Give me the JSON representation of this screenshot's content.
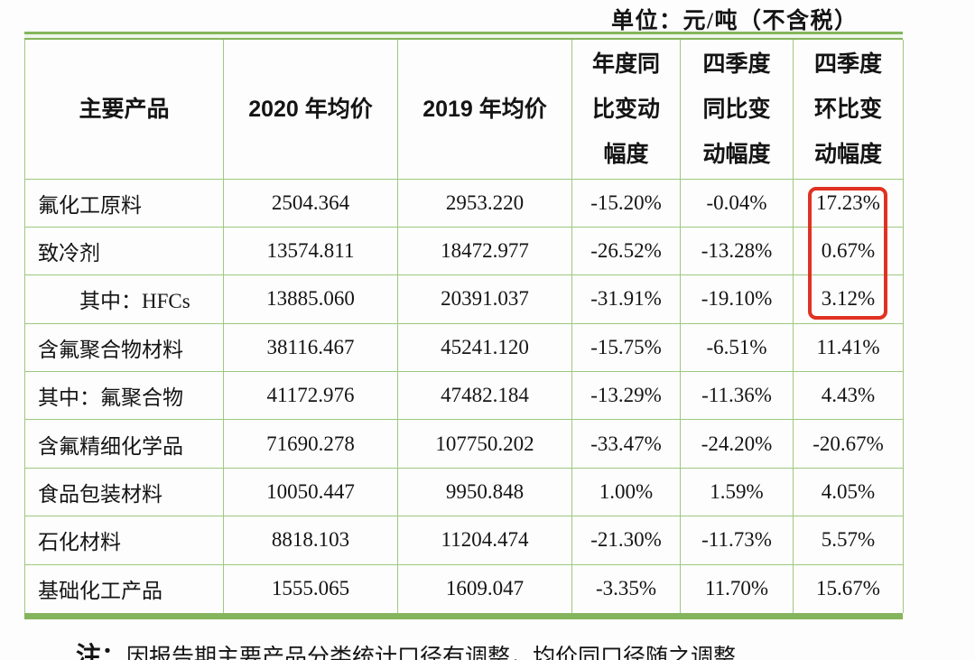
{
  "unit_label": "单位：元/吨（不含税）",
  "colors": {
    "border_green_dark": "#84b55c",
    "border_green_light": "#9dc87f",
    "highlight_red": "#e03222"
  },
  "table": {
    "col_headers": [
      {
        "lines": [
          "主要产品"
        ]
      },
      {
        "lines": [
          "2020 年均价"
        ]
      },
      {
        "lines": [
          "2019 年均价"
        ]
      },
      {
        "lines": [
          "年度同",
          "比变动",
          "幅度"
        ]
      },
      {
        "lines": [
          "四季度",
          "同比变",
          "动幅度"
        ]
      },
      {
        "lines": [
          "四季度",
          "环比变",
          "动幅度"
        ]
      }
    ],
    "rows": [
      {
        "product": "氟化工原料",
        "indent": false,
        "price_2020": "2504.364",
        "price_2019": "2953.220",
        "annual_yoy": "-15.20%",
        "q4_yoy": "-0.04%",
        "q4_qoq": "17.23%"
      },
      {
        "product": "致冷剂",
        "indent": false,
        "price_2020": "13574.811",
        "price_2019": "18472.977",
        "annual_yoy": "-26.52%",
        "q4_yoy": "-13.28%",
        "q4_qoq": "0.67%"
      },
      {
        "product": "其中：HFCs",
        "indent": true,
        "price_2020": "13885.060",
        "price_2019": "20391.037",
        "annual_yoy": "-31.91%",
        "q4_yoy": "-19.10%",
        "q4_qoq": "3.12%"
      },
      {
        "product": "含氟聚合物材料",
        "indent": false,
        "price_2020": "38116.467",
        "price_2019": "45241.120",
        "annual_yoy": "-15.75%",
        "q4_yoy": "-6.51%",
        "q4_qoq": "11.41%"
      },
      {
        "product": "其中：氟聚合物",
        "indent": false,
        "price_2020": "41172.976",
        "price_2019": "47482.184",
        "annual_yoy": "-13.29%",
        "q4_yoy": "-11.36%",
        "q4_qoq": "4.43%"
      },
      {
        "product": "含氟精细化学品",
        "indent": false,
        "price_2020": "71690.278",
        "price_2019": "107750.202",
        "annual_yoy": "-33.47%",
        "q4_yoy": "-24.20%",
        "q4_qoq": "-20.67%"
      },
      {
        "product": "食品包装材料",
        "indent": false,
        "price_2020": "10050.447",
        "price_2019": "9950.848",
        "annual_yoy": "1.00%",
        "q4_yoy": "1.59%",
        "q4_qoq": "4.05%"
      },
      {
        "product": "石化材料",
        "indent": false,
        "price_2020": "8818.103",
        "price_2019": "11204.474",
        "annual_yoy": "-21.30%",
        "q4_yoy": "-11.73%",
        "q4_qoq": "5.57%"
      },
      {
        "product": "基础化工产品",
        "indent": false,
        "price_2020": "1555.065",
        "price_2019": "1609.047",
        "annual_yoy": "-3.35%",
        "q4_yoy": "11.70%",
        "q4_qoq": "15.67%"
      }
    ]
  },
  "note": {
    "label": "注：",
    "text": "因报告期主要产品分类统计口径有调整，均价同口径随之调整"
  }
}
